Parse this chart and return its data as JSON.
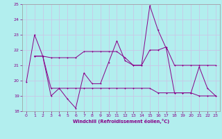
{
  "xlabel": "Windchill (Refroidissement éolien,°C)",
  "background_color": "#b2eeee",
  "grid_color": "#c8c8e8",
  "line_color": "#880088",
  "xlim": [
    -0.5,
    23.5
  ],
  "ylim": [
    18,
    25
  ],
  "xticks": [
    0,
    1,
    2,
    3,
    4,
    5,
    6,
    7,
    8,
    9,
    10,
    11,
    12,
    13,
    14,
    15,
    16,
    17,
    18,
    19,
    20,
    21,
    22,
    23
  ],
  "yticks": [
    18,
    19,
    20,
    21,
    22,
    23,
    24,
    25
  ],
  "series1_x": [
    0,
    1,
    2,
    3,
    4,
    5,
    6,
    7,
    8,
    9,
    10,
    11,
    12,
    13,
    14,
    15,
    16,
    17,
    18,
    19,
    20,
    21,
    22,
    23
  ],
  "series1_y": [
    19.9,
    23.0,
    21.6,
    19.0,
    19.5,
    18.8,
    18.2,
    20.5,
    19.8,
    19.8,
    21.2,
    22.6,
    21.3,
    21.0,
    21.0,
    24.9,
    23.3,
    22.1,
    19.2,
    19.2,
    19.2,
    20.9,
    19.5,
    19.0
  ],
  "series2_x": [
    1,
    2,
    3,
    4,
    5,
    6,
    7,
    8,
    9,
    10,
    11,
    12,
    13,
    14,
    15,
    16,
    17,
    18,
    19,
    20,
    21,
    22,
    23
  ],
  "series2_y": [
    21.6,
    21.6,
    21.5,
    21.5,
    21.5,
    21.5,
    21.9,
    21.9,
    21.9,
    21.9,
    21.9,
    21.5,
    21.0,
    21.0,
    22.0,
    22.0,
    22.2,
    21.0,
    21.0,
    21.0,
    21.0,
    21.0,
    21.0
  ],
  "series3_x": [
    1,
    2,
    3,
    4,
    5,
    6,
    7,
    8,
    9,
    10,
    11,
    12,
    13,
    14,
    15,
    16,
    17,
    18,
    19,
    20,
    21,
    22,
    23
  ],
  "series3_y": [
    21.6,
    21.6,
    19.5,
    19.5,
    19.5,
    19.5,
    19.5,
    19.5,
    19.5,
    19.5,
    19.5,
    19.5,
    19.5,
    19.5,
    19.5,
    19.2,
    19.2,
    19.2,
    19.2,
    19.2,
    19.0,
    19.0,
    19.0
  ]
}
